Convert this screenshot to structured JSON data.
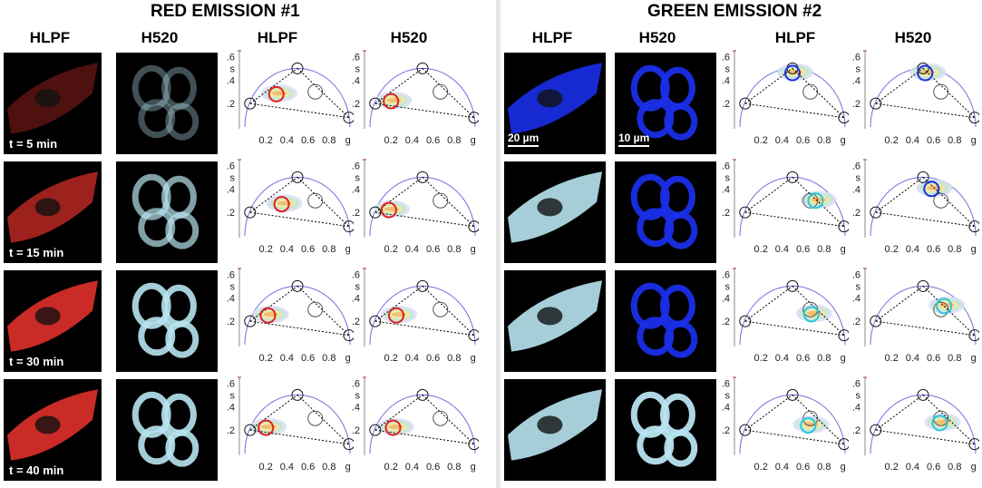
{
  "titles": {
    "red": "RED EMISSION #1",
    "green": "GREEN EMISSION #2"
  },
  "columns": {
    "c1": "HLPF",
    "c2": "H520",
    "c3": "HLPF",
    "c4": "H520",
    "c5": "HLPF",
    "c6": "H520",
    "c7": "HLPF",
    "c8": "H520"
  },
  "time_labels": [
    "t = 5 min",
    "t = 15 min",
    "t = 30 min",
    "t = 40 min"
  ],
  "scale_bars": {
    "hlpf": "20 µm",
    "h520": "10 µm"
  },
  "axes": {
    "x_label": "g",
    "y_label": "s",
    "x_ticks": [
      "0.2",
      "0.4",
      "0.6",
      "0.8"
    ],
    "y_ticks": [
      "0.6",
      "0.4",
      "0.2"
    ]
  },
  "colors": {
    "semicircle": "#6f6fe0",
    "red_marker": "#e02020",
    "blue_marker": "#1f2fe0",
    "cyan_marker": "#29c6e0",
    "red_cells": "#e0302a",
    "blue_cells": "#1a2ee8",
    "light_cells": "#b8e4f0"
  },
  "chart_data": {
    "type": "scatter",
    "x_range": [
      0,
      1
    ],
    "y_range": [
      0,
      0.65
    ],
    "reference_points": [
      {
        "g": 0.05,
        "s": 0.2
      },
      {
        "g": 0.5,
        "s": 0.5
      },
      {
        "g": 0.67,
        "s": 0.3
      },
      {
        "g": 0.99,
        "s": 0.08
      }
    ],
    "red_marker_positions": [
      {
        "time": "t = 5 min",
        "hlpf": [
          0.3,
          0.28
        ],
        "h520": [
          0.2,
          0.22
        ]
      },
      {
        "time": "t = 15 min",
        "hlpf": [
          0.35,
          0.27
        ],
        "h520": [
          0.18,
          0.22
        ]
      },
      {
        "time": "t = 30 min",
        "hlpf": [
          0.22,
          0.25
        ],
        "h520": [
          0.25,
          0.25
        ]
      },
      {
        "time": "t = 40 min",
        "hlpf": [
          0.2,
          0.22
        ],
        "h520": [
          0.22,
          0.22
        ]
      }
    ],
    "green_marker_positions": [
      {
        "time": "t = 5 min",
        "hlpf": [
          0.5,
          0.46
        ],
        "h520": [
          0.52,
          0.46
        ]
      },
      {
        "time": "t = 15 min",
        "hlpf": [
          0.72,
          0.3
        ],
        "h520": [
          0.58,
          0.4
        ]
      },
      {
        "time": "t = 30 min",
        "hlpf": [
          0.68,
          0.26
        ],
        "h520": [
          0.7,
          0.33
        ]
      },
      {
        "time": "t = 40 min",
        "hlpf": [
          0.65,
          0.24
        ],
        "h520": [
          0.66,
          0.26
        ]
      }
    ]
  }
}
